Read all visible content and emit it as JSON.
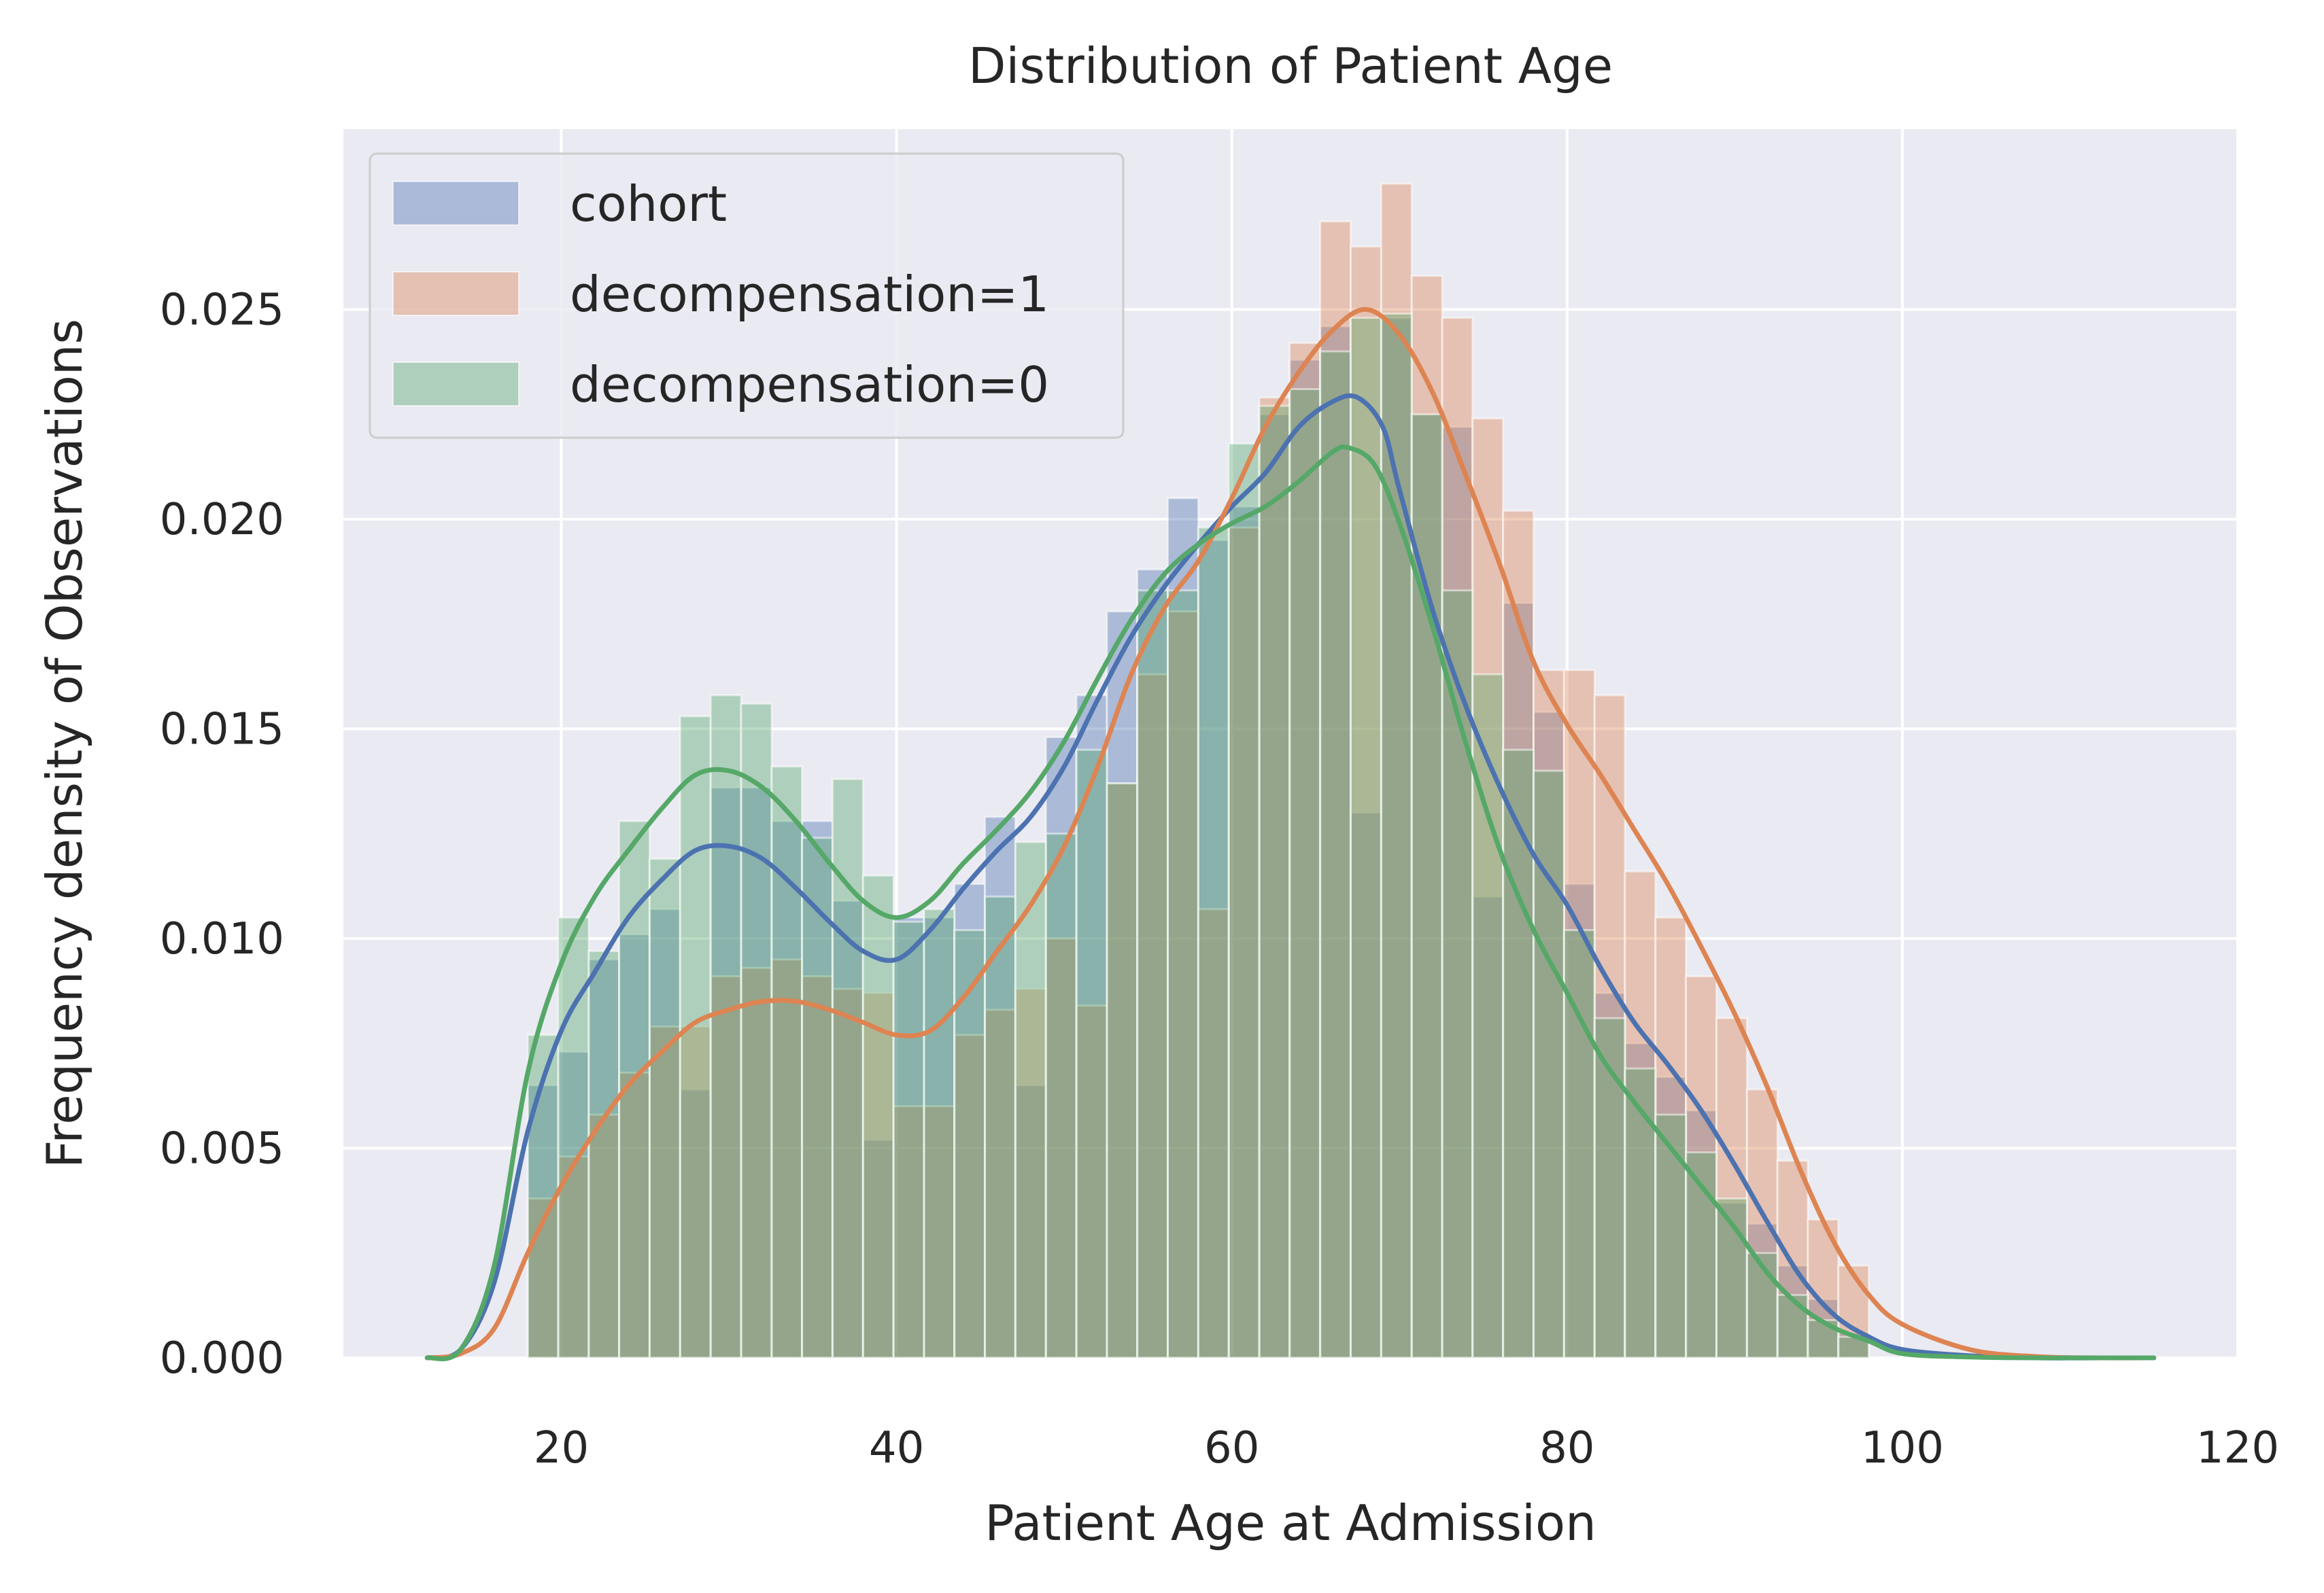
{
  "chart_data": {
    "type": "bar",
    "title": "Distribution of Patient Age",
    "xlabel": "Patient Age at Admission",
    "ylabel": "Frequency density of Observations",
    "xlim": [
      7,
      120
    ],
    "ylim": [
      0,
      0.0293
    ],
    "xticks": [
      20,
      40,
      60,
      80,
      100,
      120
    ],
    "xtick_labels": [
      "20",
      "40",
      "60",
      "80",
      "100",
      "120"
    ],
    "yticks": [
      0,
      0.005,
      0.01,
      0.015,
      0.02,
      0.025
    ],
    "ytick_labels": [
      "0.000",
      "0.005",
      "0.010",
      "0.015",
      "0.020",
      "0.025"
    ],
    "grid": true,
    "legend_position": "top-left",
    "bin_edges": [
      18,
      19.82,
      21.64,
      23.45,
      25.27,
      27.09,
      28.91,
      30.73,
      32.55,
      34.36,
      36.18,
      38,
      39.82,
      41.64,
      43.45,
      45.27,
      47.09,
      48.91,
      50.73,
      52.55,
      54.36,
      56.18,
      58,
      59.82,
      61.64,
      63.45,
      65.27,
      67.09,
      68.91,
      70.73,
      72.55,
      74.36,
      76.18,
      78,
      79.82,
      81.64,
      83.45,
      85.27,
      87.09,
      88.91,
      90.73,
      92.55,
      94.36,
      96.18,
      98
    ],
    "series": [
      {
        "name": "cohort",
        "color": "#4c72b0",
        "hist": [
          0.0065,
          0.0073,
          0.0095,
          0.0101,
          0.0107,
          0.0064,
          0.0136,
          0.0136,
          0.0128,
          0.0128,
          0.0109,
          0.0052,
          0.0105,
          0.0105,
          0.0113,
          0.0129,
          0.0065,
          0.0148,
          0.0158,
          0.0178,
          0.0188,
          0.0205,
          0.0195,
          0.0203,
          0.0225,
          0.0238,
          0.0246,
          0.013,
          0.0248,
          0.0225,
          0.0222,
          0.011,
          0.018,
          0.0154,
          0.0113,
          0.0087,
          0.0075,
          0.0067,
          0.0059,
          0.0037,
          0.0032,
          0.0022,
          0.0014,
          0.0006
        ],
        "kde": {
          "x": [
            12,
            14,
            16,
            18,
            20,
            22,
            24,
            26,
            28,
            30,
            32,
            34,
            36,
            38,
            40,
            42,
            44,
            46,
            48,
            50,
            52,
            54,
            56,
            58,
            60,
            62,
            64,
            66,
            67.5,
            69,
            70,
            72,
            74,
            76,
            78,
            80,
            82,
            84,
            86,
            88,
            90,
            92,
            94,
            96,
            98,
            100,
            104,
            108,
            112,
            115
          ],
          "y": [
            0,
            0.0002,
            0.0018,
            0.0054,
            0.0078,
            0.0092,
            0.0105,
            0.0114,
            0.0121,
            0.0122,
            0.0119,
            0.0112,
            0.0104,
            0.0097,
            0.0095,
            0.0102,
            0.0112,
            0.0121,
            0.0129,
            0.0141,
            0.0157,
            0.0172,
            0.0184,
            0.0194,
            0.0203,
            0.0211,
            0.0222,
            0.0228,
            0.0229,
            0.0222,
            0.0207,
            0.0178,
            0.0155,
            0.0136,
            0.012,
            0.0108,
            0.0093,
            0.008,
            0.007,
            0.0059,
            0.0046,
            0.0032,
            0.0019,
            0.001,
            0.0005,
            0.0002,
            5e-05,
            0,
            0,
            0
          ]
        }
      },
      {
        "name": "decompensation=1",
        "color": "#dd8452",
        "hist": [
          0.0038,
          0.0048,
          0.0058,
          0.0068,
          0.0079,
          0.0079,
          0.0091,
          0.0093,
          0.0095,
          0.0091,
          0.0088,
          0.0087,
          0.006,
          0.006,
          0.0077,
          0.0083,
          0.0088,
          0.01,
          0.0084,
          0.0137,
          0.0163,
          0.0178,
          0.0107,
          0.0198,
          0.0229,
          0.0242,
          0.0271,
          0.0265,
          0.028,
          0.0258,
          0.0248,
          0.0224,
          0.0202,
          0.0164,
          0.0164,
          0.0158,
          0.0116,
          0.0105,
          0.0091,
          0.0081,
          0.0064,
          0.0047,
          0.0033,
          0.0022
        ],
        "kde": {
          "x": [
            12,
            14,
            16,
            18,
            20,
            22,
            24,
            26,
            28,
            30,
            32,
            34,
            36,
            38,
            40,
            42,
            44,
            46,
            48,
            50,
            52,
            54,
            56,
            58,
            60,
            62,
            64,
            66,
            68,
            70,
            72,
            74,
            76,
            78,
            80,
            82,
            84,
            86,
            88,
            90,
            92,
            94,
            96,
            98,
            100,
            104,
            108,
            112,
            115
          ],
          "y": [
            0,
            0.0001,
            0.0007,
            0.0025,
            0.0041,
            0.0054,
            0.0065,
            0.0073,
            0.008,
            0.0083,
            0.0085,
            0.0085,
            0.0083,
            0.008,
            0.0077,
            0.0078,
            0.0086,
            0.0097,
            0.0108,
            0.0122,
            0.0141,
            0.0163,
            0.0179,
            0.019,
            0.0205,
            0.0222,
            0.0235,
            0.0245,
            0.025,
            0.0244,
            0.023,
            0.021,
            0.0189,
            0.0166,
            0.0151,
            0.0139,
            0.0126,
            0.0113,
            0.0098,
            0.0082,
            0.0064,
            0.0044,
            0.0027,
            0.0015,
            0.0008,
            0.0002,
            3e-05,
            0,
            0
          ]
        }
      },
      {
        "name": "decompensation=0",
        "color": "#55a868",
        "hist": [
          0.0077,
          0.0105,
          0.0097,
          0.0128,
          0.0119,
          0.0153,
          0.0158,
          0.0156,
          0.0141,
          0.0124,
          0.0138,
          0.0115,
          0.0104,
          0.0107,
          0.0102,
          0.011,
          0.0123,
          0.0125,
          0.0145,
          0.0137,
          0.0183,
          0.0183,
          0.0198,
          0.0218,
          0.0227,
          0.0231,
          0.024,
          0.0248,
          0.0249,
          0.0225,
          0.0183,
          0.0163,
          0.0145,
          0.014,
          0.0102,
          0.0081,
          0.0069,
          0.0058,
          0.0049,
          0.0038,
          0.0025,
          0.0015,
          0.0009,
          0.0005
        ],
        "kde": {
          "x": [
            12,
            14,
            16,
            18,
            20,
            22,
            24,
            26,
            28,
            30,
            32,
            34,
            36,
            38,
            40,
            42,
            44,
            46,
            48,
            50,
            52,
            54,
            56,
            58,
            60,
            62,
            64,
            66,
            67,
            68.5,
            70,
            72,
            74,
            76,
            78,
            80,
            82,
            84,
            86,
            88,
            90,
            92,
            94,
            96,
            98,
            100,
            104,
            108,
            112,
            115
          ],
          "y": [
            0,
            0.0002,
            0.0022,
            0.0068,
            0.0094,
            0.011,
            0.0121,
            0.0131,
            0.0139,
            0.014,
            0.0136,
            0.0128,
            0.0118,
            0.0109,
            0.0105,
            0.0109,
            0.0118,
            0.0126,
            0.0135,
            0.0147,
            0.0162,
            0.0176,
            0.0187,
            0.0194,
            0.0199,
            0.0203,
            0.0209,
            0.0216,
            0.0217,
            0.0213,
            0.0199,
            0.0174,
            0.0146,
            0.0121,
            0.0102,
            0.0087,
            0.0072,
            0.0061,
            0.0051,
            0.0041,
            0.0031,
            0.002,
            0.0012,
            0.0007,
            0.0004,
            0.0001,
            2e-05,
            0,
            0,
            0
          ]
        }
      }
    ]
  }
}
